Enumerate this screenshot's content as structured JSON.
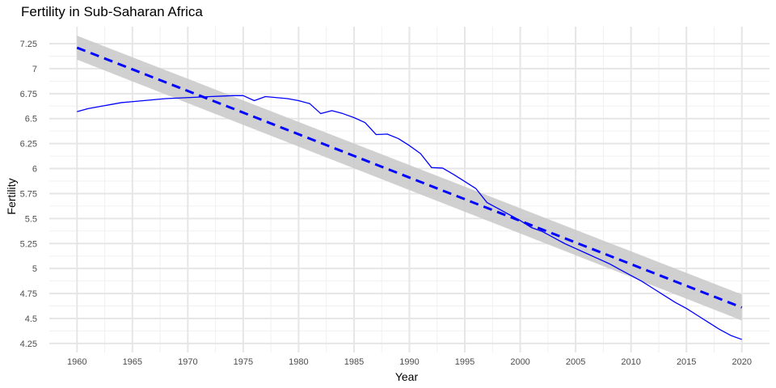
{
  "chart_data": {
    "type": "line",
    "title": "Fertility in Sub-Saharan Africa",
    "xlabel": "Year",
    "ylabel": "Fertility",
    "xlim": [
      1957.5,
      2022.5
    ],
    "ylim": [
      4.16,
      7.42
    ],
    "grid": true,
    "legend": "none",
    "x_ticks": [
      1960,
      1965,
      1970,
      1975,
      1980,
      1985,
      1990,
      1995,
      2000,
      2005,
      2010,
      2015,
      2020
    ],
    "x_tick_labels": [
      "1960",
      "1965",
      "1970",
      "1975",
      "1980",
      "1985",
      "1990",
      "1995",
      "2000",
      "2005",
      "2010",
      "2015",
      "2020"
    ],
    "y_ticks": [
      4.25,
      4.5,
      4.75,
      5,
      5.25,
      5.5,
      5.75,
      6,
      6.25,
      6.5,
      6.75,
      7,
      7.25
    ],
    "y_tick_labels": [
      "4.25",
      "4.5",
      "4.75",
      "5",
      "5.25",
      "5.5",
      "5.75",
      "6",
      "6.25",
      "6.5",
      "6.75",
      "7",
      "7.25"
    ],
    "series": [
      {
        "kind": "observed",
        "color": "#0000ff",
        "x": [
          1960,
          1961,
          1962,
          1963,
          1964,
          1965,
          1966,
          1967,
          1968,
          1969,
          1970,
          1971,
          1972,
          1973,
          1974,
          1975,
          1976,
          1977,
          1978,
          1979,
          1980,
          1981,
          1982,
          1983,
          1984,
          1985,
          1986,
          1987,
          1988,
          1989,
          1990,
          1991,
          1992,
          1993,
          1994,
          1995,
          1996,
          1997,
          1998,
          1999,
          2000,
          2001,
          2002,
          2003,
          2004,
          2005,
          2006,
          2007,
          2008,
          2009,
          2010,
          2011,
          2012,
          2013,
          2014,
          2015,
          2016,
          2017,
          2018,
          2019,
          2020
        ],
        "y": [
          6.57,
          6.6,
          6.62,
          6.64,
          6.66,
          6.67,
          6.68,
          6.69,
          6.7,
          6.705,
          6.71,
          6.715,
          6.72,
          6.725,
          6.73,
          6.73,
          6.68,
          6.72,
          6.71,
          6.7,
          6.68,
          6.65,
          6.55,
          6.58,
          6.55,
          6.51,
          6.46,
          6.34,
          6.345,
          6.3,
          6.23,
          6.15,
          6.01,
          6.005,
          5.94,
          5.87,
          5.8,
          5.66,
          5.6,
          5.54,
          5.48,
          5.41,
          5.37,
          5.31,
          5.25,
          5.2,
          5.15,
          5.1,
          5.05,
          4.99,
          4.93,
          4.87,
          4.8,
          4.73,
          4.66,
          4.6,
          4.53,
          4.46,
          4.39,
          4.33,
          4.29
        ]
      },
      {
        "kind": "linear-fit",
        "color": "#0000ff",
        "line_style": "dashed",
        "x": [
          1960,
          2020
        ],
        "y": [
          7.21,
          4.61
        ],
        "band_color": "#c8c8c8",
        "band_lower": [
          7.09,
          4.48
        ],
        "band_upper": [
          7.33,
          4.74
        ]
      }
    ]
  }
}
